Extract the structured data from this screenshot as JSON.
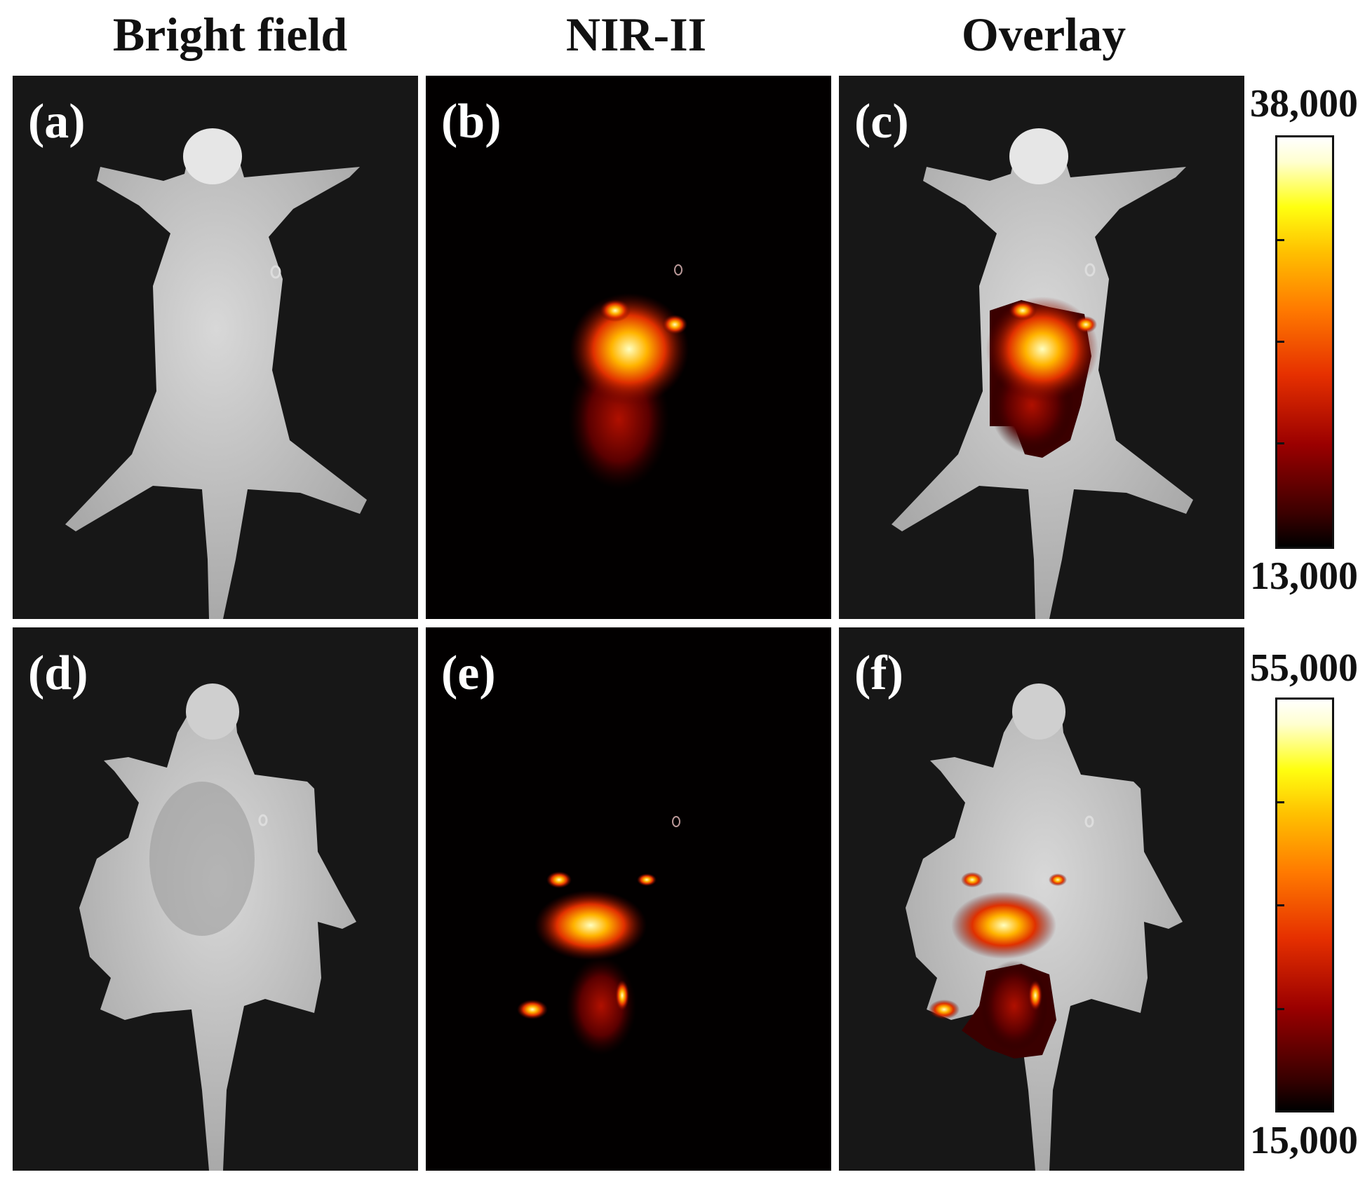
{
  "columns": [
    "Bright field",
    "NIR-II",
    "Overlay"
  ],
  "panels": [
    "(a)",
    "(b)",
    "(c)",
    "(d)",
    "(e)",
    "(f)"
  ],
  "colorbars": [
    {
      "max": "38,000",
      "min": "13,000"
    },
    {
      "max": "55,000",
      "min": "15,000"
    }
  ],
  "colors": {
    "background": "#ffffff",
    "panel": "#171717",
    "hot_low": "#000000",
    "hot_mid": "#ff3000",
    "hot_high": "#ffffff"
  }
}
